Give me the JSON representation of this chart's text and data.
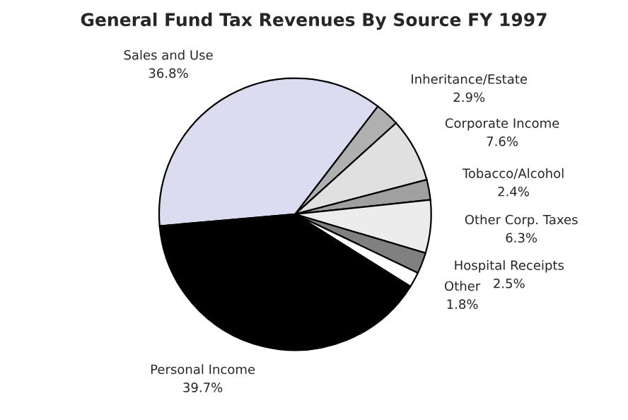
{
  "chart_data": {
    "type": "pie",
    "title": "General Fund Tax Revenues By Source FY 1997",
    "categories": [
      "Sales and Use",
      "Inheritance/Estate",
      "Corporate Income",
      "Tobacco/Alcohol",
      "Other Corp. Taxes",
      "Hospital Receipts",
      "Other",
      "Personal Income"
    ],
    "values": [
      36.8,
      2.9,
      7.6,
      2.4,
      6.3,
      2.5,
      1.8,
      39.7
    ],
    "value_labels": [
      "36.8%",
      "2.9%",
      "7.6%",
      "2.4%",
      "6.3%",
      "2.5%",
      "1.8%",
      "39.7%"
    ],
    "colors": [
      "#dcdcf0",
      "#b0b0b0",
      "#e0e0e0",
      "#a0a0a0",
      "#ececec",
      "#808080",
      "#ffffff",
      "#000000"
    ],
    "legend": false
  }
}
